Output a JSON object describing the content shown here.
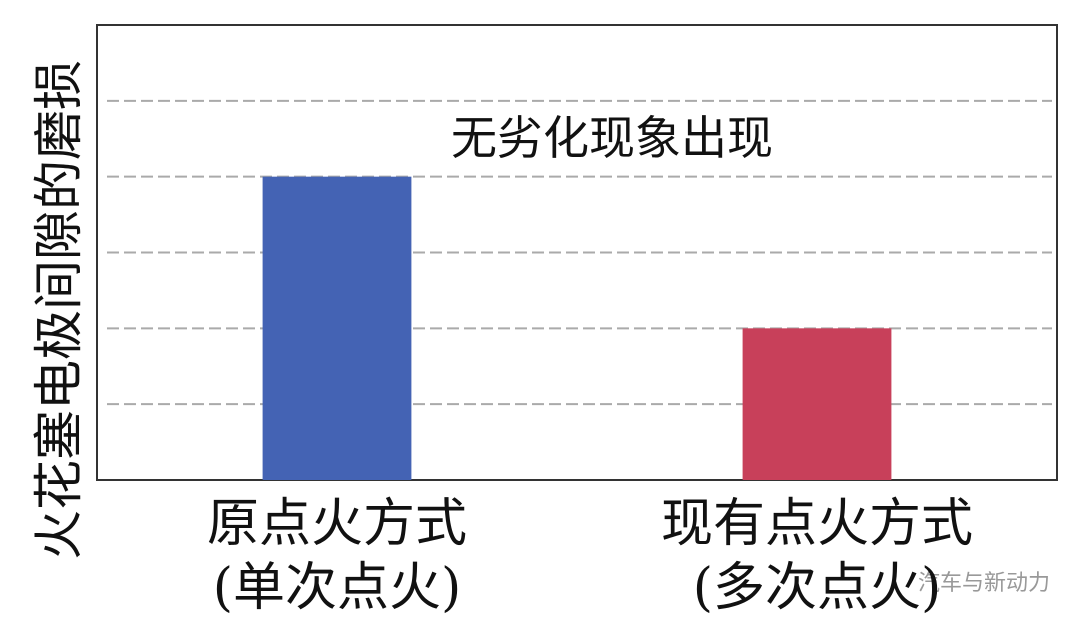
{
  "chart_data": {
    "type": "bar",
    "ylabel": "火花塞电极间隙的磨损",
    "annotation": "无劣化现象出现",
    "categories": [
      "原点火方式\n(单次点火)",
      "现有点火方式\n(多次点火)"
    ],
    "values": [
      4,
      2
    ],
    "colors": [
      "#4463b4",
      "#c8405a"
    ],
    "ylim": [
      0,
      6
    ],
    "yticks": [
      1,
      2,
      3,
      4,
      5
    ],
    "grid": true,
    "watermark": "汽车与新动力"
  }
}
